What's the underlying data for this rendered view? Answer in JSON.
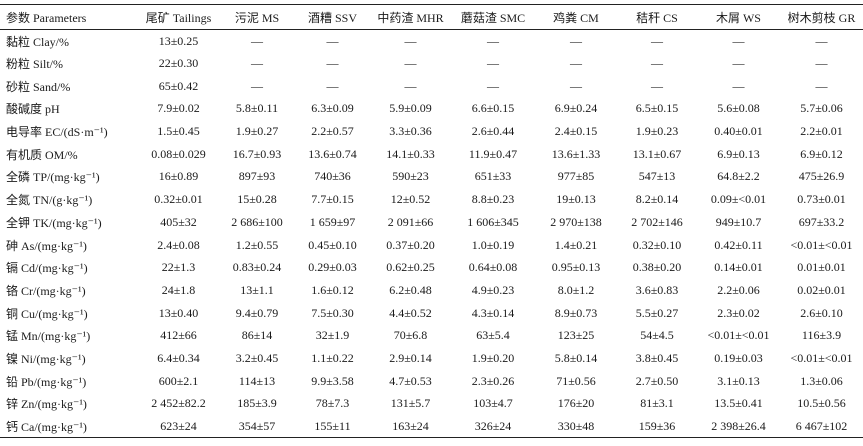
{
  "columns": [
    "参数 Parameters",
    "尾矿 Tailings",
    "污泥 MS",
    "酒糟 SSV",
    "中药渣 MHR",
    "蘑菇渣 SMC",
    "鸡粪 CM",
    "秸秆 CS",
    "木屑 WS",
    "树木剪枝 GR"
  ],
  "rows": [
    {
      "label": "黏粒 Clay/%",
      "values": [
        "13±0.25",
        "—",
        "—",
        "—",
        "—",
        "—",
        "—",
        "—",
        "—"
      ]
    },
    {
      "label": "粉粒 Silt/%",
      "values": [
        "22±0.30",
        "—",
        "—",
        "—",
        "—",
        "—",
        "—",
        "—",
        "—"
      ]
    },
    {
      "label": "砂粒 Sand/%",
      "values": [
        "65±0.42",
        "—",
        "—",
        "—",
        "—",
        "—",
        "—",
        "—",
        "—"
      ]
    },
    {
      "label": "酸碱度 pH",
      "values": [
        "7.9±0.02",
        "5.8±0.11",
        "6.3±0.09",
        "5.9±0.09",
        "6.6±0.15",
        "6.9±0.24",
        "6.5±0.15",
        "5.6±0.08",
        "5.7±0.06"
      ]
    },
    {
      "label": "电导率 EC/(dS·m⁻¹)",
      "values": [
        "1.5±0.45",
        "1.9±0.27",
        "2.2±0.57",
        "3.3±0.36",
        "2.6±0.44",
        "2.4±0.15",
        "1.9±0.23",
        "0.40±0.01",
        "2.2±0.01"
      ]
    },
    {
      "label": "有机质 OM/%",
      "values": [
        "0.08±0.029",
        "16.7±0.93",
        "13.6±0.74",
        "14.1±0.33",
        "11.9±0.47",
        "13.6±1.33",
        "13.1±0.67",
        "6.9±0.13",
        "6.9±0.12"
      ]
    },
    {
      "label": "全磷 TP/(mg·kg⁻¹)",
      "values": [
        "16±0.89",
        "897±93",
        "740±36",
        "590±23",
        "651±33",
        "977±85",
        "547±13",
        "64.8±2.2",
        "475±26.9"
      ]
    },
    {
      "label": "全氮 TN/(g·kg⁻¹)",
      "values": [
        "0.32±0.01",
        "15±0.28",
        "7.7±0.15",
        "12±0.52",
        "8.8±0.23",
        "19±0.13",
        "8.2±0.14",
        "0.09±<0.01",
        "0.73±0.01"
      ]
    },
    {
      "label": "全钾 TK/(mg·kg⁻¹)",
      "values": [
        "405±32",
        "2 686±100",
        "1 659±97",
        "2 091±66",
        "1 606±345",
        "2 970±138",
        "2 702±146",
        "949±10.7",
        "697±33.2"
      ]
    },
    {
      "label": "砷 As/(mg·kg⁻¹)",
      "values": [
        "2.4±0.08",
        "1.2±0.55",
        "0.45±0.10",
        "0.37±0.20",
        "1.0±0.19",
        "1.4±0.21",
        "0.32±0.10",
        "0.42±0.11",
        "<0.01±<0.01"
      ]
    },
    {
      "label": "镉 Cd/(mg·kg⁻¹)",
      "values": [
        "22±1.3",
        "0.83±0.24",
        "0.29±0.03",
        "0.62±0.25",
        "0.64±0.08",
        "0.95±0.13",
        "0.38±0.20",
        "0.14±0.01",
        "0.01±0.01"
      ]
    },
    {
      "label": "铬 Cr/(mg·kg⁻¹)",
      "values": [
        "24±1.8",
        "13±1.1",
        "1.6±0.12",
        "6.2±0.48",
        "4.9±0.23",
        "8.0±1.2",
        "3.6±0.83",
        "2.2±0.06",
        "0.02±0.01"
      ]
    },
    {
      "label": "铜 Cu/(mg·kg⁻¹)",
      "values": [
        "13±0.40",
        "9.4±0.79",
        "7.5±0.30",
        "4.4±0.52",
        "4.3±0.14",
        "8.9±0.73",
        "5.5±0.27",
        "2.3±0.02",
        "2.6±0.10"
      ]
    },
    {
      "label": "锰 Mn/(mg·kg⁻¹)",
      "values": [
        "412±66",
        "86±14",
        "32±1.9",
        "70±6.8",
        "63±5.4",
        "123±25",
        "54±4.5",
        "<0.01±<0.01",
        "116±3.9"
      ]
    },
    {
      "label": "镍 Ni/(mg·kg⁻¹)",
      "values": [
        "6.4±0.34",
        "3.2±0.45",
        "1.1±0.22",
        "2.9±0.14",
        "1.9±0.20",
        "5.8±0.14",
        "3.8±0.45",
        "0.19±0.03",
        "<0.01±<0.01"
      ]
    },
    {
      "label": "铅 Pb/(mg·kg⁻¹)",
      "values": [
        "600±2.1",
        "114±13",
        "9.9±3.58",
        "4.7±0.53",
        "2.3±0.26",
        "71±0.56",
        "2.7±0.50",
        "3.1±0.13",
        "1.3±0.06"
      ]
    },
    {
      "label": "锌 Zn/(mg·kg⁻¹)",
      "values": [
        "2 452±82.2",
        "185±3.9",
        "78±7.3",
        "131±5.7",
        "103±4.7",
        "176±20",
        "81±3.1",
        "13.5±0.41",
        "10.5±0.56"
      ]
    },
    {
      "label": "钙 Ca/(mg·kg⁻¹)",
      "values": [
        "623±24",
        "354±57",
        "155±11",
        "163±24",
        "326±24",
        "330±48",
        "159±36",
        "2 398±26.4",
        "6 467±102"
      ]
    }
  ]
}
